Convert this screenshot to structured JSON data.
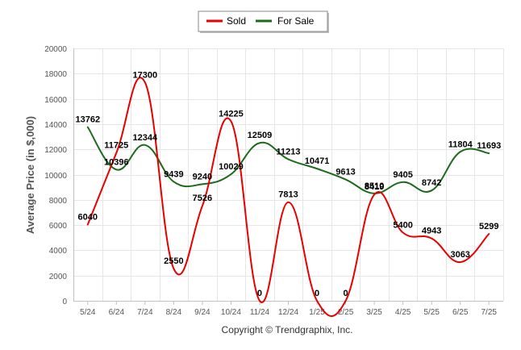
{
  "colors": {
    "sold": "#e60000",
    "for_sale": "#1a6b1a",
    "grid": "#e6e6e6",
    "axis": "#c0c0c0",
    "text": "#555555"
  },
  "chart_data": {
    "type": "line",
    "title": "",
    "xlabel": "",
    "ylabel": "Average Price (in $,000)",
    "categories": [
      "5/24",
      "6/24",
      "7/24",
      "8/24",
      "9/24",
      "10/24",
      "11/24",
      "12/24",
      "1/25",
      "2/25",
      "3/25",
      "4/25",
      "5/25",
      "6/25",
      "7/25"
    ],
    "ylim": [
      0,
      20000
    ],
    "yticks": [
      0,
      2000,
      4000,
      6000,
      8000,
      10000,
      12000,
      14000,
      16000,
      18000,
      20000
    ],
    "grid": true,
    "smooth": true,
    "legend_position": "top-center",
    "series": [
      {
        "name": "Sold",
        "color": "#e60000",
        "values": [
          6040,
          11725,
          17300,
          2550,
          7526,
          14225,
          0,
          7813,
          0,
          0,
          8419,
          5400,
          4943,
          3063,
          5299
        ]
      },
      {
        "name": "For Sale",
        "color": "#1a6b1a",
        "values": [
          13762,
          10396,
          12344,
          9439,
          9240,
          10029,
          12509,
          11213,
          10471,
          9613,
          8510,
          9405,
          8742,
          11804,
          11693
        ]
      }
    ]
  },
  "legend": {
    "items": [
      {
        "label": "Sold"
      },
      {
        "label": "For Sale"
      }
    ]
  },
  "footer": {
    "copyright": "Copyright © Trendgraphix, Inc."
  }
}
